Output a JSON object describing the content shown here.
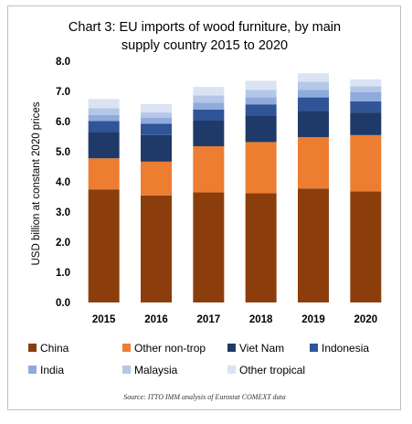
{
  "chart_data": {
    "type": "bar",
    "stacked": true,
    "title": "Chart 3: EU imports of wood furniture, by main supply country 2015 to 2020",
    "title_lines": [
      "Chart 3: EU imports of wood furniture, by main",
      "supply country 2015 to 2020"
    ],
    "xlabel": "",
    "ylabel": "USD billion at constant 2020 prices",
    "ylim": [
      0,
      8
    ],
    "yticks": [
      "0.0",
      "1.0",
      "2.0",
      "3.0",
      "4.0",
      "5.0",
      "6.0",
      "7.0",
      "8.0"
    ],
    "categories": [
      "2015",
      "2016",
      "2017",
      "2018",
      "2019",
      "2020"
    ],
    "grid": false,
    "legend_position": "bottom",
    "series": [
      {
        "name": "China",
        "color": "#8b3e0c",
        "values": [
          3.75,
          3.55,
          3.65,
          3.62,
          3.78,
          3.68
        ]
      },
      {
        "name": "Other non-trop",
        "color": "#ed7d31",
        "values": [
          1.03,
          1.12,
          1.53,
          1.7,
          1.7,
          1.87
        ]
      },
      {
        "name": "Viet Nam",
        "color": "#1f3a68",
        "values": [
          0.87,
          0.88,
          0.85,
          0.88,
          0.87,
          0.75
        ]
      },
      {
        "name": "Indonesia",
        "color": "#2f5597",
        "values": [
          0.37,
          0.38,
          0.37,
          0.37,
          0.45,
          0.37
        ]
      },
      {
        "name": "India",
        "color": "#8faadc",
        "values": [
          0.2,
          0.2,
          0.22,
          0.23,
          0.25,
          0.3
        ]
      },
      {
        "name": "Malaysia",
        "color": "#b4c7e7",
        "values": [
          0.22,
          0.17,
          0.25,
          0.25,
          0.27,
          0.2
        ]
      },
      {
        "name": "Other tropical",
        "color": "#dae3f3",
        "values": [
          0.31,
          0.28,
          0.28,
          0.3,
          0.28,
          0.23
        ]
      }
    ],
    "source": "Source: ITTO IMM analysis of Eurostat COMEXT data"
  }
}
